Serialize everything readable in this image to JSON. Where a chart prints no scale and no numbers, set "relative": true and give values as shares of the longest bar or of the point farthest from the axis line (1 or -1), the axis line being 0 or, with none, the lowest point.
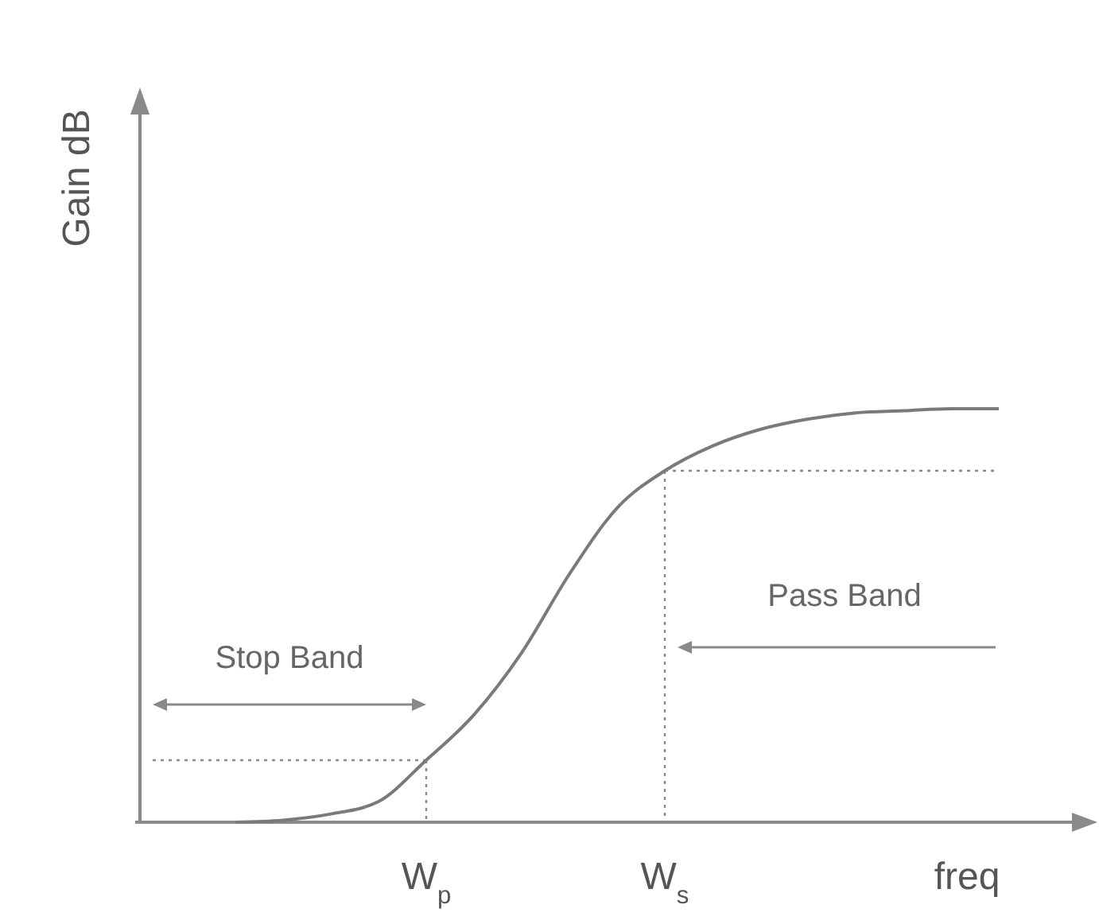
{
  "chart_data": {
    "type": "line",
    "relative": true,
    "xlabel": "freq",
    "ylabel": "Gain dB",
    "categories": [
      null,
      null,
      null,
      null,
      null,
      null,
      "W$_{p}$",
      null,
      null,
      null,
      null,
      "W$_{s}$",
      null,
      null,
      null,
      null,
      null,
      null,
      null,
      null,
      null
    ],
    "series": [
      {
        "color": "#7a7a7a",
        "values": [
          null,
          null,
          0,
          0.005,
          0.02,
          0.05,
          0.15,
          0.26,
          0.41,
          0.6,
          0.76,
          0.85,
          0.91,
          0.95,
          0.975,
          0.99,
          0.995,
          1,
          1,
          null,
          null
        ]
      }
    ],
    "annotations": [
      "Stop Band",
      "Pass Band"
    ],
    "ref_lines": [
      {
        "axis": "x",
        "value": "W$_{p}$",
        "color": "#8a8a8a",
        "line_style": "dotted"
      },
      {
        "axis": "x",
        "value": "W$_{s}$",
        "color": "#8a8a8a",
        "line_style": "dotted"
      },
      {
        "axis": "y",
        "value": 0.15,
        "color": "#8a8a8a",
        "line_style": "dotted"
      },
      {
        "axis": "y",
        "value": 0.85,
        "color": "#8a8a8a",
        "line_style": "dotted"
      }
    ],
    "tick_labels": "x",
    "marker": "none",
    "line_style": "solid"
  }
}
